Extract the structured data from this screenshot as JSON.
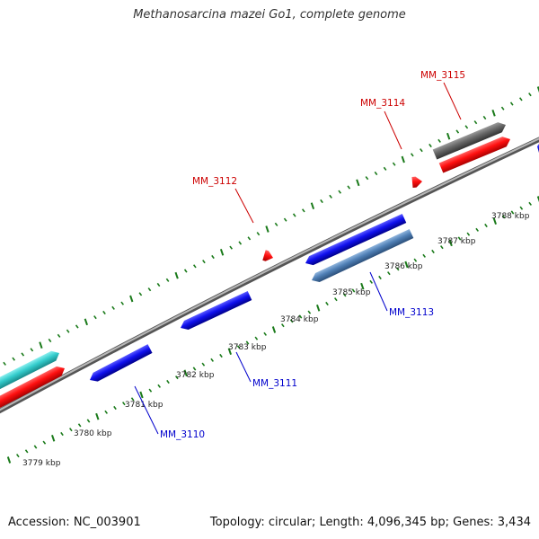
{
  "title": "Methanosarcina mazei Go1, complete genome",
  "footer": {
    "accession": "Accession: NC_003901",
    "info": "Topology: circular; Length: 4,096,345 bp; Genes: 3,434"
  },
  "colors": {
    "backbone": "#8c8c8c",
    "forward_strand_gene": "#ff1a1a",
    "reverse_strand_gene": "#1a1aee",
    "forward_label": "#cc0000",
    "reverse_label": "#0000cc",
    "tick": "#1a7a1a",
    "gene_dark_gray": "#666666",
    "gene_steel_blue": "#4f7fb5",
    "gene_cyan": "#33cccc"
  },
  "tick_labels": [
    "3779 kbp",
    "3780 kbp",
    "3781 kbp",
    "3782 kbp",
    "3783 kbp",
    "3784 kbp",
    "3785 kbp",
    "3786 kbp",
    "3787 kbp",
    "3788 kbp"
  ],
  "genes": [
    {
      "name": "MM_3110",
      "strand": "reverse",
      "color": "blue"
    },
    {
      "name": "MM_3111",
      "strand": "reverse",
      "color": "blue"
    },
    {
      "name": "MM_3112",
      "strand": "forward",
      "color": "red"
    },
    {
      "name": "MM_3113",
      "strand": "reverse",
      "color": "steel-blue"
    },
    {
      "name": "MM_3114",
      "strand": "forward",
      "color": "red"
    },
    {
      "name": "MM_3115",
      "strand": "forward",
      "color": "dark-gray"
    }
  ]
}
